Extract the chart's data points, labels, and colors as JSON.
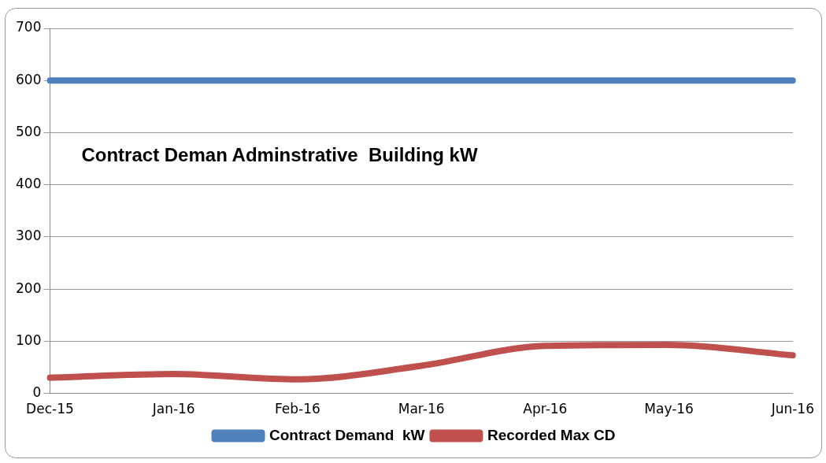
{
  "chart_data": {
    "type": "line",
    "title": "Contract Deman Adminstrative  Building kW",
    "categories": [
      "Dec-15",
      "Jan-16",
      "Feb-16",
      "Mar-16",
      "Apr-16",
      "May-16",
      "Jun-16"
    ],
    "series": [
      {
        "name": "Contract Demand  kW",
        "color": "#4f81bd",
        "values": [
          600,
          600,
          600,
          600,
          600,
          600,
          600
        ]
      },
      {
        "name": "Recorded Max CD",
        "color": "#c0504d",
        "values": [
          30,
          37,
          27,
          53,
          91,
          93,
          73
        ]
      }
    ],
    "ylim": [
      0,
      700
    ],
    "yticks": [
      0,
      100,
      200,
      300,
      400,
      500,
      600,
      700
    ],
    "grid": "y",
    "legend": "bottom",
    "marker": "none",
    "line_style": "solid"
  }
}
